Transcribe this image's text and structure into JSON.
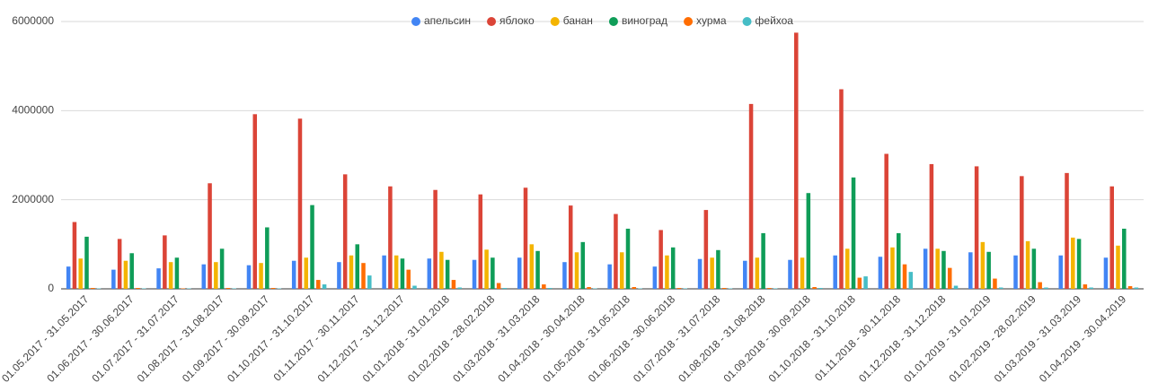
{
  "chart_data": {
    "type": "bar",
    "categories": [
      "01.05.2017 - 31.05.2017",
      "01.06.2017 - 30.06.2017",
      "01.07.2017 - 31.07.2017",
      "01.08.2017 - 31.08.2017",
      "01.09.2017 - 30.09.2017",
      "01.10.2017 - 31.10.2017",
      "01.11.2017 - 30.11.2017",
      "01.12.2017 - 31.12.2017",
      "01.01.2018 - 31.01.2018",
      "01.02.2018 - 28.02.2018",
      "01.03.2018 - 31.03.2018",
      "01.04.2018 - 30.04.2018",
      "01.05.2018 - 31.05.2018",
      "01.06.2018 - 30.06.2018",
      "01.07.2018 - 31.07.2018",
      "01.08.2018 - 31.08.2018",
      "01.09.2018 - 30.09.2018",
      "01.10.2018 - 31.10.2018",
      "01.11.2018 - 30.11.2018",
      "01.12.2018 - 31.12.2018",
      "01.01.2019 - 31.01.2019",
      "01.02.2019 - 28.02.2019",
      "01.03.2019 - 31.03.2019",
      "01.04.2019 - 30.04.2019"
    ],
    "series": [
      {
        "name": "апельсин",
        "color": "#4285f4",
        "values": [
          500000,
          430000,
          460000,
          550000,
          530000,
          630000,
          600000,
          750000,
          680000,
          650000,
          700000,
          600000,
          550000,
          500000,
          670000,
          630000,
          650000,
          750000,
          720000,
          900000,
          820000,
          750000,
          750000,
          700000
        ]
      },
      {
        "name": "яблоко",
        "color": "#db4437",
        "values": [
          1500000,
          1120000,
          1200000,
          2370000,
          3920000,
          3820000,
          2570000,
          2300000,
          2220000,
          2120000,
          2270000,
          1870000,
          1680000,
          1320000,
          1770000,
          4150000,
          5750000,
          4480000,
          3030000,
          2800000,
          2750000,
          2530000,
          2600000,
          2300000
        ]
      },
      {
        "name": "банан",
        "color": "#f4b400",
        "values": [
          680000,
          630000,
          600000,
          600000,
          580000,
          700000,
          750000,
          750000,
          830000,
          880000,
          1000000,
          820000,
          820000,
          750000,
          700000,
          700000,
          700000,
          900000,
          930000,
          900000,
          1050000,
          1070000,
          1150000,
          970000
        ]
      },
      {
        "name": "виноград",
        "color": "#0f9d58",
        "values": [
          1170000,
          800000,
          700000,
          900000,
          1380000,
          1880000,
          1000000,
          680000,
          650000,
          700000,
          850000,
          1050000,
          1350000,
          930000,
          870000,
          1250000,
          2150000,
          2500000,
          1250000,
          850000,
          830000,
          900000,
          1120000,
          1350000
        ]
      },
      {
        "name": "хурма",
        "color": "#ff6d01",
        "values": [
          20000,
          20000,
          10000,
          20000,
          20000,
          200000,
          580000,
          430000,
          200000,
          130000,
          100000,
          40000,
          40000,
          20000,
          20000,
          20000,
          40000,
          250000,
          550000,
          470000,
          230000,
          150000,
          100000,
          60000
        ]
      },
      {
        "name": "фейхоа",
        "color": "#46bdc6",
        "values": [
          10000,
          10000,
          10000,
          10000,
          10000,
          100000,
          300000,
          70000,
          30000,
          20000,
          20000,
          10000,
          10000,
          10000,
          10000,
          10000,
          20000,
          280000,
          380000,
          70000,
          30000,
          30000,
          30000,
          30000
        ]
      }
    ],
    "ylim": [
      0,
      6000000
    ],
    "yticks": [
      0,
      2000000,
      4000000,
      6000000
    ],
    "grid": true,
    "legend": "top"
  }
}
